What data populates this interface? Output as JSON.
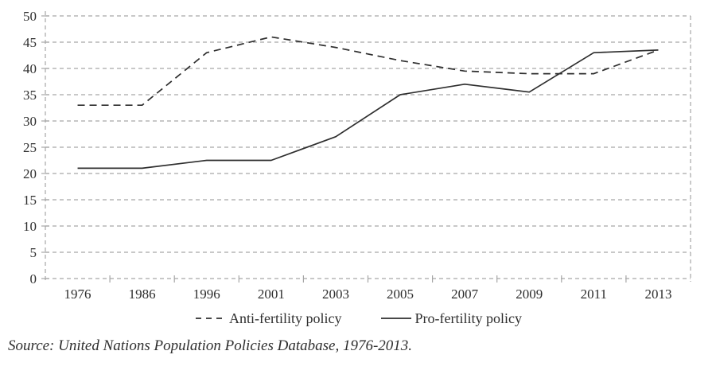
{
  "colors": {
    "line": "#2e2e2e",
    "grid": "#a6a6a6",
    "text": "#2e2e2e"
  },
  "source_note": "Source: United Nations Population Policies Database, 1976-2013.",
  "chart_data": {
    "type": "line",
    "categories": [
      "1976",
      "1986",
      "1996",
      "2001",
      "2003",
      "2005",
      "2007",
      "2009",
      "2011",
      "2013"
    ],
    "series": [
      {
        "name": "Anti-fertility policy",
        "style": "dashed",
        "values": [
          33,
          33,
          43,
          46,
          44,
          41.5,
          39.5,
          39,
          39,
          43.5
        ]
      },
      {
        "name": "Pro-fertility policy",
        "style": "solid",
        "values": [
          21,
          21,
          22.5,
          22.5,
          27,
          35,
          37,
          35.5,
          43,
          43.5
        ]
      }
    ],
    "title": "",
    "xlabel": "",
    "ylabel": "",
    "ylim": [
      0,
      50
    ],
    "ytick_step": 5,
    "yticks": [
      0,
      5,
      10,
      15,
      20,
      25,
      30,
      35,
      40,
      45,
      50
    ],
    "grid": true,
    "grid_style": "dashed",
    "legend_position": "bottom"
  }
}
